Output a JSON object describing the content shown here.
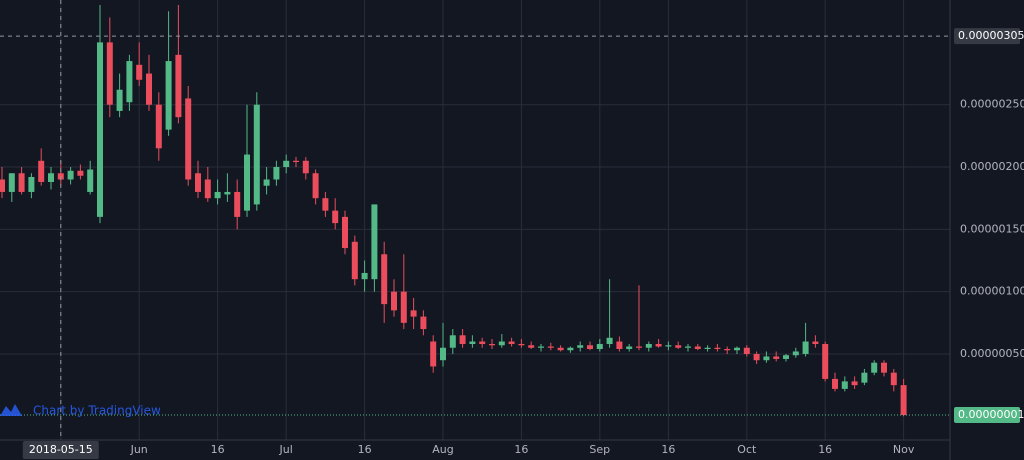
{
  "chart_data": {
    "type": "candlestick",
    "grid": true,
    "up_color": "#53b987",
    "down_color": "#eb4d5c",
    "categories": [
      null,
      null,
      null,
      null,
      null,
      null,
      "2018-05-15",
      null,
      null,
      null,
      null,
      null,
      null,
      null,
      "Jun",
      null,
      null,
      null,
      null,
      null,
      null,
      null,
      "16",
      null,
      null,
      null,
      null,
      null,
      null,
      "Jul",
      null,
      null,
      null,
      null,
      null,
      null,
      null,
      "16",
      null,
      null,
      null,
      null,
      null,
      null,
      null,
      "Aug",
      null,
      null,
      null,
      null,
      null,
      null,
      null,
      "16",
      null,
      null,
      null,
      null,
      null,
      null,
      null,
      "Sep",
      null,
      null,
      null,
      null,
      null,
      null,
      "16",
      null,
      null,
      null,
      null,
      null,
      null,
      null,
      "Oct",
      null,
      null,
      null,
      null,
      null,
      null,
      null,
      "16",
      null,
      null,
      null,
      null,
      null,
      null,
      null,
      "Nov"
    ],
    "values": [
      [
        1.9e-06,
        2e-06,
        1.75e-06,
        1.8e-06
      ],
      [
        1.8e-06,
        1.95e-06,
        1.72e-06,
        1.95e-06
      ],
      [
        1.95e-06,
        2e-06,
        1.78e-06,
        1.8e-06
      ],
      [
        1.8e-06,
        1.95e-06,
        1.75e-06,
        1.92e-06
      ],
      [
        2.05e-06,
        2.15e-06,
        1.85e-06,
        1.88e-06
      ],
      [
        1.88e-06,
        2e-06,
        1.82e-06,
        1.95e-06
      ],
      [
        1.95e-06,
        2.05e-06,
        1.85e-06,
        1.9e-06
      ],
      [
        1.9e-06,
        2e-06,
        1.86e-06,
        1.97e-06
      ],
      [
        1.97e-06,
        2.02e-06,
        1.9e-06,
        1.93e-06
      ],
      [
        1.8e-06,
        2.05e-06,
        1.78e-06,
        1.98e-06
      ],
      [
        1.6e-06,
        3.3e-06,
        1.55e-06,
        3e-06
      ],
      [
        3e-06,
        3.2e-06,
        2.4e-06,
        2.5e-06
      ],
      [
        2.45e-06,
        2.75e-06,
        2.4e-06,
        2.62e-06
      ],
      [
        2.52e-06,
        2.9e-06,
        2.45e-06,
        2.85e-06
      ],
      [
        2.82e-06,
        3e-06,
        2.65e-06,
        2.7e-06
      ],
      [
        2.75e-06,
        2.9e-06,
        2.45e-06,
        2.5e-06
      ],
      [
        2.5e-06,
        2.6e-06,
        2.05e-06,
        2.15e-06
      ],
      [
        2.3e-06,
        3.25e-06,
        2.25e-06,
        2.85e-06
      ],
      [
        2.9e-06,
        3.3e-06,
        2.35e-06,
        2.4e-06
      ],
      [
        2.55e-06,
        2.65e-06,
        1.85e-06,
        1.9e-06
      ],
      [
        1.95e-06,
        2.05e-06,
        1.75e-06,
        1.8e-06
      ],
      [
        1.9e-06,
        2e-06,
        1.72e-06,
        1.75e-06
      ],
      [
        1.75e-06,
        1.9e-06,
        1.7e-06,
        1.8e-06
      ],
      [
        1.78e-06,
        1.95e-06,
        1.72e-06,
        1.8e-06
      ],
      [
        1.8e-06,
        1.9e-06,
        1.5e-06,
        1.6e-06
      ],
      [
        1.65e-06,
        2.5e-06,
        1.6e-06,
        2.1e-06
      ],
      [
        1.7e-06,
        2.6e-06,
        1.65e-06,
        2.5e-06
      ],
      [
        1.85e-06,
        2e-06,
        1.78e-06,
        1.9e-06
      ],
      [
        1.9e-06,
        2.05e-06,
        1.85e-06,
        2e-06
      ],
      [
        2e-06,
        2.1e-06,
        1.95e-06,
        2.05e-06
      ],
      [
        2.05e-06,
        2.08e-06,
        2e-06,
        2.04e-06
      ],
      [
        2.05e-06,
        2.08e-06,
        1.9e-06,
        1.95e-06
      ],
      [
        1.95e-06,
        1.98e-06,
        1.7e-06,
        1.75e-06
      ],
      [
        1.75e-06,
        1.8e-06,
        1.6e-06,
        1.65e-06
      ],
      [
        1.65e-06,
        1.75e-06,
        1.5e-06,
        1.55e-06
      ],
      [
        1.6e-06,
        1.65e-06,
        1.3e-06,
        1.35e-06
      ],
      [
        1.4e-06,
        1.45e-06,
        1.05e-06,
        1.1e-06
      ],
      [
        1.1e-06,
        1.25e-06,
        1e-06,
        1.15e-06
      ],
      [
        1.1e-06,
        1.7e-06,
        1e-06,
        1.7e-06
      ],
      [
        1.3e-06,
        1.4e-06,
        7.5e-07,
        9e-07
      ],
      [
        1e-06,
        1.1e-06,
        8e-07,
        8.5e-07
      ],
      [
        1e-06,
        1.3e-06,
        7e-07,
        7.5e-07
      ],
      [
        8.5e-07,
        9.5e-07,
        7e-07,
        8e-07
      ],
      [
        8e-07,
        8.5e-07,
        6.5e-07,
        7e-07
      ],
      [
        6e-07,
        6.5e-07,
        3.5e-07,
        4e-07
      ],
      [
        4.5e-07,
        7.5e-07,
        4e-07,
        5.5e-07
      ],
      [
        5.5e-07,
        7e-07,
        5e-07,
        6.5e-07
      ],
      [
        6.5e-07,
        7e-07,
        5.5e-07,
        5.8e-07
      ],
      [
        5.8e-07,
        6.5e-07,
        5.5e-07,
        6e-07
      ],
      [
        6e-07,
        6.3e-07,
        5.5e-07,
        5.8e-07
      ],
      [
        5.8e-07,
        6.2e-07,
        5.4e-07,
        5.7e-07
      ],
      [
        5.7e-07,
        6.6e-07,
        5.5e-07,
        6e-07
      ],
      [
        6e-07,
        6.3e-07,
        5.6e-07,
        5.8e-07
      ],
      [
        5.8e-07,
        6.2e-07,
        5.5e-07,
        5.7e-07
      ],
      [
        5.7e-07,
        6e-07,
        5.4e-07,
        5.5e-07
      ],
      [
        5.5e-07,
        5.8e-07,
        5.2e-07,
        5.6e-07
      ],
      [
        5.6e-07,
        5.9e-07,
        5.3e-07,
        5.5e-07
      ],
      [
        5.5e-07,
        5.7e-07,
        5.2e-07,
        5.3e-07
      ],
      [
        5.3e-07,
        5.6e-07,
        5.1e-07,
        5.5e-07
      ],
      [
        5.5e-07,
        6e-07,
        5.2e-07,
        5.7e-07
      ],
      [
        5.7e-07,
        6e-07,
        5.3e-07,
        5.4e-07
      ],
      [
        5.4e-07,
        6.2e-07,
        5.2e-07,
        5.8e-07
      ],
      [
        5.8e-07,
        1.1e-06,
        5.5e-07,
        6.3e-07
      ],
      [
        6e-07,
        6.4e-07,
        5.2e-07,
        5.4e-07
      ],
      [
        5.4e-07,
        5.8e-07,
        5.2e-07,
        5.6e-07
      ],
      [
        5.6e-07,
        1.05e-06,
        5.3e-07,
        5.5e-07
      ],
      [
        5.5e-07,
        6e-07,
        5.2e-07,
        5.8e-07
      ],
      [
        5.8e-07,
        6.2e-07,
        5.5e-07,
        5.6e-07
      ],
      [
        5.6e-07,
        6e-07,
        5.3e-07,
        5.7e-07
      ],
      [
        5.7e-07,
        6e-07,
        5.4e-07,
        5.5e-07
      ],
      [
        5.5e-07,
        5.8e-07,
        5.2e-07,
        5.6e-07
      ],
      [
        5.6e-07,
        5.8e-07,
        5.3e-07,
        5.4e-07
      ],
      [
        5.4e-07,
        5.7e-07,
        5.2e-07,
        5.5e-07
      ],
      [
        5.5e-07,
        5.8e-07,
        5.2e-07,
        5.4e-07
      ],
      [
        5.4e-07,
        5.6e-07,
        5e-07,
        5.3e-07
      ],
      [
        5.3e-07,
        5.6e-07,
        5e-07,
        5.5e-07
      ],
      [
        5.5e-07,
        5.7e-07,
        4.8e-07,
        5e-07
      ],
      [
        5e-07,
        5.2e-07,
        4.2e-07,
        4.5e-07
      ],
      [
        4.5e-07,
        5.2e-07,
        4.3e-07,
        4.8e-07
      ],
      [
        4.8e-07,
        5.2e-07,
        4.4e-07,
        4.6e-07
      ],
      [
        4.6e-07,
        5e-07,
        4.4e-07,
        4.9e-07
      ],
      [
        4.9e-07,
        5.5e-07,
        4.7e-07,
        5.2e-07
      ],
      [
        5e-07,
        7.5e-07,
        4.8e-07,
        6e-07
      ],
      [
        6e-07,
        6.5e-07,
        5.5e-07,
        5.8e-07
      ],
      [
        5.8e-07,
        6e-07,
        2.8e-07,
        3e-07
      ],
      [
        3e-07,
        3.5e-07,
        2e-07,
        2.2e-07
      ],
      [
        2.2e-07,
        3.2e-07,
        2e-07,
        2.8e-07
      ],
      [
        2.8e-07,
        3.2e-07,
        2.2e-07,
        2.5e-07
      ],
      [
        2.7e-07,
        3.8e-07,
        2.5e-07,
        3.5e-07
      ],
      [
        3.5e-07,
        4.5e-07,
        3.3e-07,
        4.3e-07
      ],
      [
        4.3e-07,
        4.5e-07,
        3.2e-07,
        3.5e-07
      ],
      [
        3.5e-07,
        3.8e-07,
        2e-07,
        2.5e-07
      ],
      [
        2.5e-07,
        3e-07,
        0,
        1e-08
      ]
    ],
    "ylim": [
      -1.5e-07,
      3.34e-06
    ],
    "yticks": [
      {
        "value": 5e-07,
        "label": "0.00000050"
      },
      {
        "value": 1e-06,
        "label": "0.00000100"
      },
      {
        "value": 1.5e-06,
        "label": "0.00000150"
      },
      {
        "value": 2e-06,
        "label": "0.00000200"
      },
      {
        "value": 2.5e-06,
        "label": "0.00000250"
      }
    ],
    "crosshair": {
      "value": 3.05e-06,
      "label": "0.00000305",
      "category": 6
    },
    "last_price": {
      "value": 1e-08,
      "label": "0.00000001"
    },
    "watermark": "Chart by TradingView"
  }
}
